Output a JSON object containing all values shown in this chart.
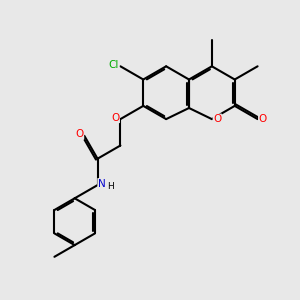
{
  "bg_color": "#e8e8e8",
  "bond_color": "#000000",
  "bond_width": 1.5,
  "dbo": 0.055,
  "atom_colors": {
    "O": "#ff0000",
    "N": "#0000cd",
    "Cl": "#00aa00",
    "C": "#000000",
    "H": "#000000"
  },
  "font_size": 7.5,
  "figsize": [
    3.0,
    3.0
  ],
  "dpi": 100
}
